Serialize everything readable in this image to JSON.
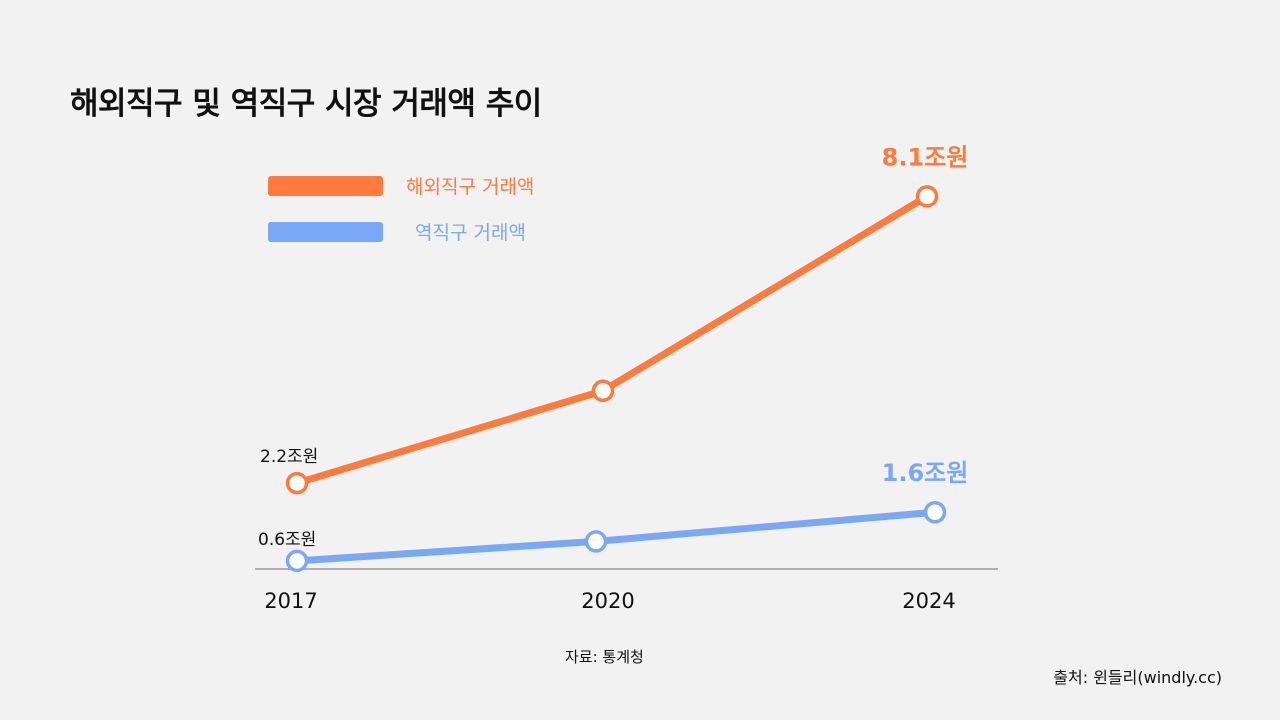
{
  "title": "해외직구 및 역직구 시장 거래액 추이",
  "source_note": "자료: 통계청",
  "credit": "출처: 윈들리(windly.cc)",
  "colors": {
    "background": "#f2f2f2",
    "overseas": "#ff7a3d",
    "reverse": "#7aa8f7",
    "axis": "#9a9a9a",
    "text": "#111111"
  },
  "chart_data": {
    "type": "line",
    "title": "해외직구 및 역직구 시장 거래액 추이",
    "xlabel": "",
    "ylabel": "",
    "categories": [
      "2017",
      "2020",
      "2024"
    ],
    "ylim": [
      0,
      9.5
    ],
    "grid": false,
    "legend": "top-left",
    "series": [
      {
        "key": "overseas",
        "name": "해외직구 거래액",
        "values": [
          2.2,
          4.1,
          8.1
        ],
        "labels": [
          "2.2조원",
          null,
          "8.1조원"
        ]
      },
      {
        "key": "reverse",
        "name": "역직구 거래액",
        "values": [
          0.6,
          1.0,
          1.6
        ],
        "labels": [
          "0.6조원",
          null,
          "1.6조원"
        ]
      }
    ]
  }
}
